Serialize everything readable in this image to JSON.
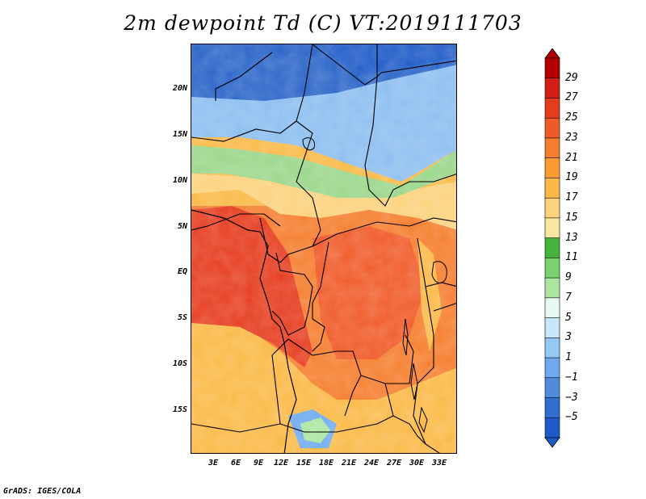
{
  "title": "2m dewpoint Td (C) VT:2019111703",
  "footer": "GrADS: IGES/COLA",
  "lat_labels": [
    "20N",
    "15N",
    "10N",
    "5N",
    "EQ",
    "5S",
    "10S",
    "15S"
  ],
  "lon_labels": [
    "3E",
    "6E",
    "9E",
    "12E",
    "15E",
    "18E",
    "21E",
    "24E",
    "27E",
    "30E",
    "33E"
  ],
  "colorbar": {
    "labels": [
      "29",
      "27",
      "25",
      "23",
      "21",
      "19",
      "17",
      "15",
      "13",
      "11",
      "9",
      "7",
      "5",
      "3",
      "1",
      "-1",
      "-3",
      "-5"
    ],
    "colors": [
      "#b40000",
      "#d21e14",
      "#e63c1e",
      "#f05a28",
      "#f57d2d",
      "#fa9b32",
      "#fab946",
      "#fcd27d",
      "#fae6a0",
      "#46b43c",
      "#78d26e",
      "#aae6a0",
      "#e6f8f0",
      "#c8e6fa",
      "#96c8f5",
      "#6eaaf0",
      "#508cdc",
      "#326ed2",
      "#1e5ac8"
    ]
  },
  "map_colors": {
    "desert_dry": "#2a64c8",
    "sahel_dry": "#8cbef0",
    "transition": "#9ad68a",
    "savanna": "#fcd27d",
    "moist_forest": "#e63c1e",
    "humid": "#f05a28",
    "southern": "#fab946"
  }
}
